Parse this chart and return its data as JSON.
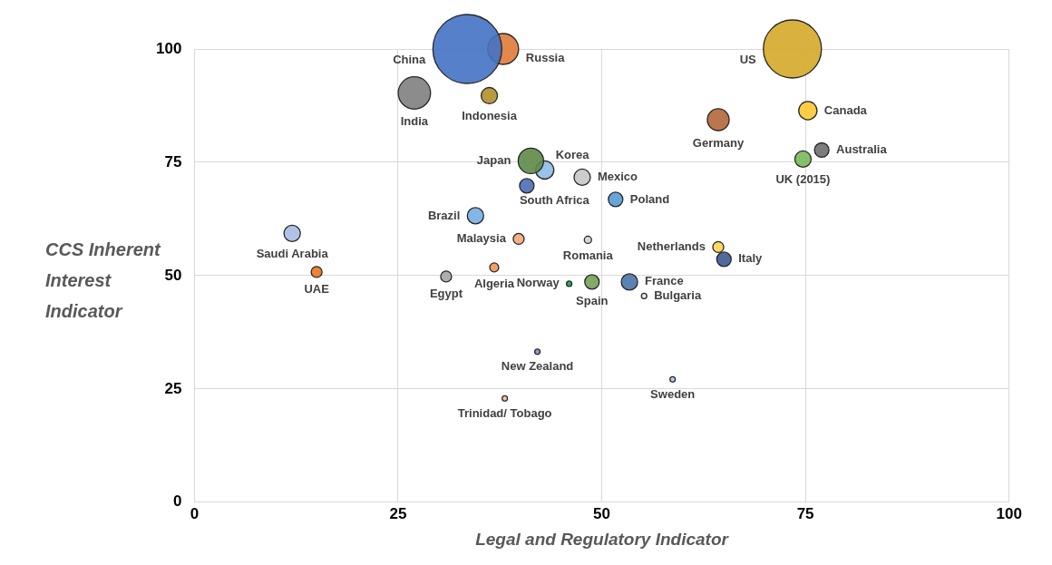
{
  "chart_data": {
    "type": "bubble",
    "xlabel": "Legal and Regulatory Indicator",
    "ylabel": "CCS Inherent Interest Indicator",
    "xlim": [
      0,
      100
    ],
    "ylim": [
      0,
      100
    ],
    "xticks": [
      0,
      25,
      50,
      75,
      100
    ],
    "yticks": [
      0,
      25,
      50,
      75,
      100
    ],
    "grid": true,
    "legend": false,
    "series": [
      {
        "name": "China",
        "color": "#4472c4",
        "x": [
          33.5
        ],
        "values": [
          100
        ],
        "sizes": [
          1
        ]
      },
      {
        "name": "Russia",
        "color": "#e07b39",
        "x": [
          37.9
        ],
        "values": [
          100
        ],
        "sizes": [
          0.2
        ]
      },
      {
        "name": "US",
        "color": "#d4a82a",
        "x": [
          73.4
        ],
        "values": [
          100
        ],
        "sizes": [
          0.71
        ]
      },
      {
        "name": "India",
        "color": "#7f7f7f",
        "x": [
          27.0
        ],
        "values": [
          90.3
        ],
        "sizes": [
          0.22
        ]
      },
      {
        "name": "Indonesia",
        "color": "#b08f2c",
        "x": [
          36.2
        ],
        "values": [
          89.7
        ],
        "sizes": [
          0.056
        ]
      },
      {
        "name": "Germany",
        "color": "#b5673a",
        "x": [
          64.3
        ],
        "values": [
          84.4
        ],
        "sizes": [
          0.1
        ]
      },
      {
        "name": "Canada",
        "color": "#fdc931",
        "x": [
          75.3
        ],
        "values": [
          86.4
        ],
        "sizes": [
          0.07
        ]
      },
      {
        "name": "Australia",
        "color": "#6f6f6f",
        "x": [
          77.0
        ],
        "values": [
          77.7
        ],
        "sizes": [
          0.044
        ]
      },
      {
        "name": "UK (2015)",
        "color": "#79b95a",
        "x": [
          74.7
        ],
        "values": [
          75.7
        ],
        "sizes": [
          0.056
        ]
      },
      {
        "name": "Japan",
        "color": "#5e8a47",
        "x": [
          41.3
        ],
        "values": [
          75.3
        ],
        "sizes": [
          0.136
        ]
      },
      {
        "name": "Korea",
        "color": "#8dbde8",
        "x": [
          43.0
        ],
        "values": [
          73.3
        ],
        "sizes": [
          0.07
        ]
      },
      {
        "name": "Mexico",
        "color": "#c6c6c6",
        "x": [
          47.6
        ],
        "values": [
          71.7
        ],
        "sizes": [
          0.056
        ]
      },
      {
        "name": "South Africa",
        "color": "#4a6eb5",
        "x": [
          40.8
        ],
        "values": [
          69.8
        ],
        "sizes": [
          0.044
        ]
      },
      {
        "name": "Poland",
        "color": "#5a9bd5",
        "x": [
          51.7
        ],
        "values": [
          66.8
        ],
        "sizes": [
          0.044
        ]
      },
      {
        "name": "Brazil",
        "color": "#73aee2",
        "x": [
          34.5
        ],
        "values": [
          63.2
        ],
        "sizes": [
          0.056
        ]
      },
      {
        "name": "Saudi Arabia",
        "color": "#a6bde8",
        "x": [
          12.0
        ],
        "values": [
          59.3
        ],
        "sizes": [
          0.056
        ]
      },
      {
        "name": "Malaysia",
        "color": "#f4aa78",
        "x": [
          39.8
        ],
        "values": [
          58.1
        ],
        "sizes": [
          0.025
        ]
      },
      {
        "name": "Romania",
        "color": "#d0d0d0",
        "x": [
          48.3
        ],
        "values": [
          57.9
        ],
        "sizes": [
          0.011
        ]
      },
      {
        "name": "Netherlands",
        "color": "#fdd54f",
        "x": [
          64.3
        ],
        "values": [
          56.3
        ],
        "sizes": [
          0.025
        ]
      },
      {
        "name": "Italy",
        "color": "#3f5a90",
        "x": [
          65.0
        ],
        "values": [
          53.6
        ],
        "sizes": [
          0.044
        ]
      },
      {
        "name": "UAE",
        "color": "#ed7322",
        "x": [
          15.0
        ],
        "values": [
          50.8
        ],
        "sizes": [
          0.025
        ]
      },
      {
        "name": "Algeria",
        "color": "#f0935a",
        "x": [
          36.8
        ],
        "values": [
          51.8
        ],
        "sizes": [
          0.017
        ]
      },
      {
        "name": "Egypt",
        "color": "#a5a5a5",
        "x": [
          30.9
        ],
        "values": [
          49.8
        ],
        "sizes": [
          0.025
        ]
      },
      {
        "name": "Norway",
        "color": "#17a34a",
        "x": [
          46.0
        ],
        "values": [
          48.2
        ],
        "sizes": [
          0.006
        ]
      },
      {
        "name": "Spain",
        "color": "#73a256",
        "x": [
          48.8
        ],
        "values": [
          48.6
        ],
        "sizes": [
          0.044
        ]
      },
      {
        "name": "France",
        "color": "#4a76a8",
        "x": [
          53.4
        ],
        "values": [
          48.6
        ],
        "sizes": [
          0.056
        ]
      },
      {
        "name": "Bulgaria",
        "color": "#e8e8e8",
        "x": [
          55.2
        ],
        "values": [
          45.5
        ],
        "sizes": [
          0.006
        ]
      },
      {
        "name": "New Zealand",
        "color": "#8093d0",
        "x": [
          42.1
        ],
        "values": [
          33.2
        ],
        "sizes": [
          0.006
        ]
      },
      {
        "name": "Sweden",
        "color": "#a9c8ef",
        "x": [
          58.7
        ],
        "values": [
          27.1
        ],
        "sizes": [
          0.006
        ]
      },
      {
        "name": "Trinidad/ Tobago",
        "color": "#f7c39a",
        "x": [
          38.1
        ],
        "values": [
          22.9
        ],
        "sizes": [
          0.006
        ]
      }
    ]
  }
}
